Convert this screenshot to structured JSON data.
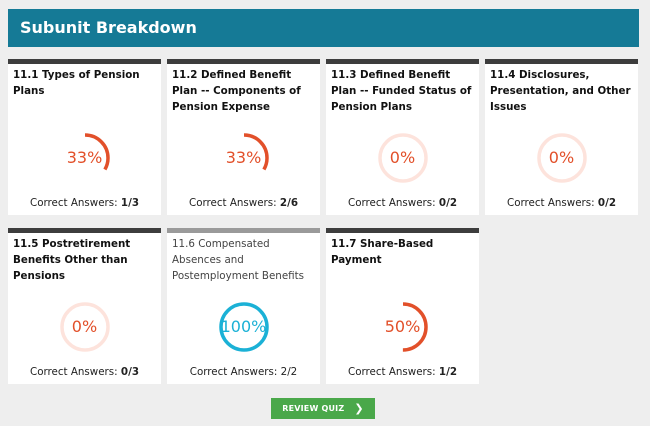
{
  "header": {
    "title": "Subunit Breakdown"
  },
  "colors": {
    "accent": "#157a96",
    "progress": "#e2502a",
    "track": "#fde3dc",
    "complete": "#1bb1d6",
    "button": "#4aa84a"
  },
  "answers_label": "Correct Answers:",
  "cards": [
    {
      "title": "11.1 Types of Pension Plans",
      "percent_text": "33%",
      "progress": 0.3333,
      "answers": "1/3",
      "style": "bold"
    },
    {
      "title": "11.2 Defined Benefit Plan -- Components of Pension Expense",
      "percent_text": "33%",
      "progress": 0.3333,
      "answers": "2/6",
      "style": "bold"
    },
    {
      "title": "11.3 Defined Benefit Plan -- Funded Status of Pension Plans",
      "percent_text": "0%",
      "progress": 0,
      "answers": "0/2",
      "style": "bold"
    },
    {
      "title": "11.4 Disclosures, Presentation, and Other Issues",
      "percent_text": "0%",
      "progress": 0,
      "answers": "0/2",
      "style": "bold"
    },
    {
      "title": "11.5 Postretirement Benefits Other than Pensions",
      "percent_text": "0%",
      "progress": 0,
      "answers": "0/3",
      "style": "bold"
    },
    {
      "title": "11.6 Compensated Absences and Postemployment Benefits",
      "percent_text": "100%",
      "progress": 1,
      "answers": "2/2",
      "style": "normal"
    },
    {
      "title": "11.7 Share-Based Payment",
      "percent_text": "50%",
      "progress": 0.5,
      "answers": "1/2",
      "style": "bold"
    }
  ],
  "review_button": {
    "label": "REVIEW QUIZ",
    "icon": "chevron-right-icon"
  }
}
